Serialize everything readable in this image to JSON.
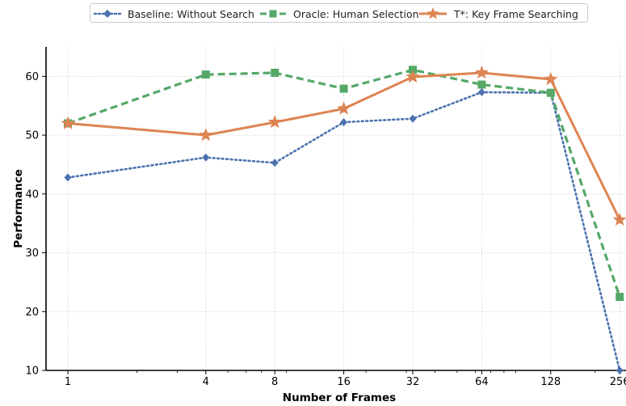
{
  "chart_data": {
    "type": "line",
    "x": [
      1,
      4,
      8,
      16,
      32,
      64,
      128,
      256
    ],
    "x_tick_labels": [
      "1",
      "4",
      "8",
      "16",
      "32",
      "64",
      "128",
      "256"
    ],
    "x_scale": "log2",
    "xlabel": "Number of Frames",
    "ylabel": "Performance",
    "ylim": [
      10,
      65
    ],
    "y_ticks": [
      10,
      20,
      30,
      40,
      50,
      60
    ],
    "grid": true,
    "legend_position": "top-center",
    "series": [
      {
        "name": "Baseline: Without Search",
        "values": [
          42.8,
          46.2,
          45.3,
          52.2,
          52.8,
          57.3,
          57.2,
          10.0
        ],
        "color": "#4c72b0",
        "style": "dotted",
        "marker": "diamond"
      },
      {
        "name": "Oracle: Human Selection",
        "values": [
          52.0,
          60.3,
          60.6,
          57.9,
          61.1,
          58.6,
          57.2,
          22.5
        ],
        "color": "#55a868",
        "style": "dashed",
        "marker": "square"
      },
      {
        "name": "T*: Key Frame Searching",
        "values": [
          52.0,
          50.0,
          52.2,
          54.5,
          59.9,
          60.6,
          59.5,
          35.6
        ],
        "color": "#dd8452",
        "style": "solid",
        "marker": "star"
      }
    ]
  }
}
